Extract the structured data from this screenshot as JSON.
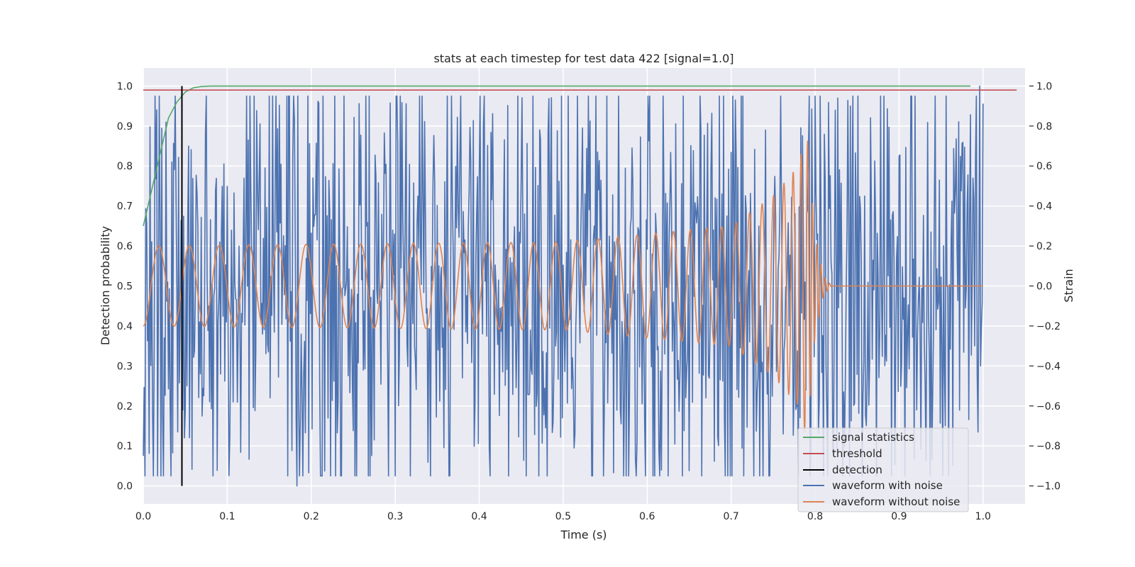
{
  "chart_data": {
    "type": "line",
    "title": "stats at each timestep for test data 422 [signal=1.0]",
    "xlabel": "Time (s)",
    "ylabel_left": "Detection probability",
    "ylabel_right": "Strain",
    "xlim": [
      0.0,
      1.05
    ],
    "ylim_left": [
      -0.045,
      1.045
    ],
    "ylim_right": [
      -1.09,
      1.09
    ],
    "xticks": [
      0.0,
      0.1,
      0.2,
      0.3,
      0.4,
      0.5,
      0.6,
      0.7,
      0.8,
      0.9,
      1.0
    ],
    "xtick_labels": [
      "0.0",
      "0.1",
      "0.2",
      "0.3",
      "0.4",
      "0.5",
      "0.6",
      "0.7",
      "0.8",
      "0.9",
      "1.0"
    ],
    "yticks_left": [
      0.0,
      0.1,
      0.2,
      0.3,
      0.4,
      0.5,
      0.6,
      0.7,
      0.8,
      0.9,
      1.0
    ],
    "ytick_labels_left": [
      "0.0",
      "0.1",
      "0.2",
      "0.3",
      "0.4",
      "0.5",
      "0.6",
      "0.7",
      "0.8",
      "0.9",
      "1.0"
    ],
    "yticks_right": [
      -1.0,
      -0.8,
      -0.6,
      -0.4,
      -0.2,
      0.0,
      0.2,
      0.4,
      0.6,
      0.8,
      1.0
    ],
    "ytick_labels_right": [
      "−1.0",
      "−0.8",
      "−0.6",
      "−0.4",
      "−0.2",
      "0.0",
      "0.2",
      "0.4",
      "0.6",
      "0.8",
      "1.0"
    ],
    "grid": true,
    "legend_position": "lower-right",
    "series": [
      {
        "name": "signal statistics",
        "axis": "left",
        "color": "#55a868",
        "x": [
          0.0,
          0.01,
          0.02,
          0.03,
          0.04,
          0.05,
          0.06,
          0.07,
          0.08,
          0.1,
          0.2,
          0.3,
          0.4,
          0.5,
          0.6,
          0.7,
          0.8,
          0.9,
          0.985
        ],
        "y": [
          0.65,
          0.74,
          0.83,
          0.92,
          0.96,
          0.985,
          0.996,
          0.999,
          1.0,
          1.0,
          1.0,
          1.0,
          1.0,
          1.0,
          1.0,
          1.0,
          1.0,
          1.0,
          1.0
        ]
      },
      {
        "name": "threshold",
        "axis": "left",
        "color": "#c44e52",
        "x": [
          0.0,
          1.04
        ],
        "y": [
          0.99,
          0.99
        ]
      },
      {
        "name": "detection",
        "axis": "left",
        "color": "#000000",
        "x": [
          0.046,
          0.046
        ],
        "y": [
          0.0,
          1.0
        ]
      },
      {
        "name": "waveform with noise",
        "axis": "right",
        "color": "#4c72b0",
        "generated": "noisy",
        "x_range": [
          0.0,
          1.0
        ],
        "approx_amplitude": 0.6,
        "extremes": [
          {
            "x": 0.0,
            "y": -0.85
          },
          {
            "x": 0.183,
            "y": -1.0
          },
          {
            "x": 0.996,
            "y": 1.0
          },
          {
            "x": 0.997,
            "y": -0.4
          }
        ]
      },
      {
        "name": "waveform without noise",
        "axis": "right",
        "color": "#dd8452",
        "generated": "chirp",
        "x_range": [
          0.0,
          1.0
        ],
        "envelope": {
          "x": [
            0.0,
            0.5,
            0.7,
            0.75,
            0.78,
            0.79,
            0.8,
            0.81,
            0.82,
            1.0
          ],
          "y": [
            0.2,
            0.22,
            0.3,
            0.45,
            0.6,
            0.78,
            0.25,
            0.05,
            0.0,
            0.0
          ]
        },
        "merger_time": 0.79
      }
    ]
  }
}
